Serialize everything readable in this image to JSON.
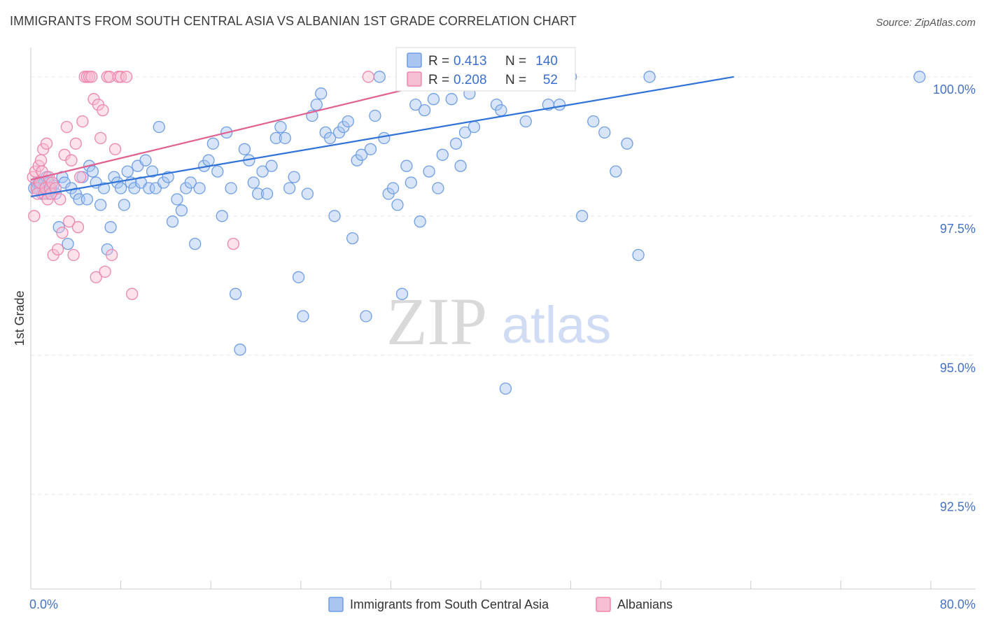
{
  "title": "IMMIGRANTS FROM SOUTH CENTRAL ASIA VS ALBANIAN 1ST GRADE CORRELATION CHART",
  "source": "Source: ZipAtlas.com",
  "colors": {
    "blue": "#6f9ee6",
    "blue_fill": "#a9c5f0",
    "blue_line": "#2f72d8",
    "pink": "#ee86ad",
    "pink_fill": "#f7bfd3",
    "pink_line": "#e0608f",
    "axis_text": "#4472c4"
  },
  "watermark": {
    "zip": "ZIP",
    "atlas": "atlas"
  },
  "chart_data": {
    "type": "scatter",
    "xlabel": "",
    "ylabel": "1st Grade",
    "xlim": [
      0,
      80
    ],
    "ylim": [
      90.8,
      100.4
    ],
    "x_tick_labels": [
      "0.0%",
      "80.0%"
    ],
    "y_ticks": [
      92.5,
      95.0,
      97.5,
      100.0
    ],
    "y_tick_labels": [
      "92.5%",
      "95.0%",
      "97.5%",
      "100.0%"
    ],
    "legend_position": "bottom-center",
    "stats": [
      {
        "r_label": "R =",
        "r_value": "0.413",
        "n_label": "N =",
        "n_value": "140"
      },
      {
        "r_label": "R =",
        "r_value": "0.208",
        "n_label": "N =",
        "n_value": "52"
      }
    ],
    "series": [
      {
        "name": "Immigrants from South Central Asia",
        "color": "#6f9ee6",
        "trend": {
          "x": [
            0,
            62.5
          ],
          "y": [
            97.85,
            100.0
          ]
        },
        "points": [
          [
            0.3,
            98.0
          ],
          [
            0.5,
            98.1
          ],
          [
            0.6,
            98.0
          ],
          [
            0.7,
            98.1
          ],
          [
            0.8,
            98.0
          ],
          [
            0.9,
            98.1
          ],
          [
            1.0,
            97.9
          ],
          [
            1.1,
            98.0
          ],
          [
            1.2,
            98.1
          ],
          [
            1.3,
            98.0
          ],
          [
            1.4,
            98.2
          ],
          [
            1.5,
            97.9
          ],
          [
            1.6,
            98.1
          ],
          [
            1.7,
            97.95
          ],
          [
            1.8,
            98.0
          ],
          [
            2.0,
            98.05
          ],
          [
            2.2,
            97.9
          ],
          [
            2.5,
            97.3
          ],
          [
            2.8,
            98.2
          ],
          [
            3.0,
            98.1
          ],
          [
            3.3,
            97.0
          ],
          [
            3.6,
            98.0
          ],
          [
            4.0,
            97.9
          ],
          [
            4.3,
            97.8
          ],
          [
            4.6,
            98.2
          ],
          [
            5.0,
            97.8
          ],
          [
            5.2,
            98.4
          ],
          [
            5.5,
            98.3
          ],
          [
            5.8,
            98.1
          ],
          [
            6.2,
            97.7
          ],
          [
            6.5,
            98.0
          ],
          [
            6.8,
            96.9
          ],
          [
            7.1,
            97.3
          ],
          [
            7.4,
            98.2
          ],
          [
            7.7,
            98.1
          ],
          [
            8.0,
            98.0
          ],
          [
            8.3,
            97.7
          ],
          [
            8.6,
            98.3
          ],
          [
            8.9,
            98.1
          ],
          [
            9.2,
            98.0
          ],
          [
            9.5,
            98.4
          ],
          [
            9.8,
            98.1
          ],
          [
            10.2,
            98.5
          ],
          [
            10.5,
            98.0
          ],
          [
            10.8,
            98.3
          ],
          [
            11.1,
            98.0
          ],
          [
            11.4,
            99.1
          ],
          [
            11.8,
            98.1
          ],
          [
            12.2,
            98.2
          ],
          [
            12.6,
            97.4
          ],
          [
            13.0,
            97.8
          ],
          [
            13.4,
            97.6
          ],
          [
            13.8,
            98.0
          ],
          [
            14.2,
            98.1
          ],
          [
            14.6,
            97.0
          ],
          [
            15.0,
            98.0
          ],
          [
            15.4,
            98.4
          ],
          [
            15.8,
            98.5
          ],
          [
            16.2,
            98.8
          ],
          [
            16.6,
            98.3
          ],
          [
            17.0,
            97.5
          ],
          [
            17.4,
            99.0
          ],
          [
            17.8,
            98.0
          ],
          [
            18.2,
            96.1
          ],
          [
            18.6,
            95.1
          ],
          [
            19.0,
            98.7
          ],
          [
            19.4,
            98.5
          ],
          [
            19.8,
            98.1
          ],
          [
            20.2,
            97.9
          ],
          [
            20.6,
            98.3
          ],
          [
            21.0,
            97.9
          ],
          [
            21.4,
            98.4
          ],
          [
            21.8,
            98.9
          ],
          [
            22.2,
            99.1
          ],
          [
            22.6,
            98.9
          ],
          [
            23.0,
            98.0
          ],
          [
            23.4,
            98.2
          ],
          [
            23.8,
            96.4
          ],
          [
            24.2,
            95.7
          ],
          [
            24.6,
            97.9
          ],
          [
            25.0,
            99.3
          ],
          [
            25.4,
            99.5
          ],
          [
            25.8,
            99.7
          ],
          [
            26.2,
            99.0
          ],
          [
            26.6,
            98.9
          ],
          [
            27.0,
            97.5
          ],
          [
            27.4,
            99.0
          ],
          [
            27.8,
            99.1
          ],
          [
            28.2,
            99.2
          ],
          [
            28.6,
            97.1
          ],
          [
            29.0,
            98.5
          ],
          [
            29.4,
            98.6
          ],
          [
            29.8,
            95.7
          ],
          [
            30.2,
            98.7
          ],
          [
            30.6,
            99.3
          ],
          [
            31.0,
            100.0
          ],
          [
            31.4,
            98.9
          ],
          [
            31.8,
            97.9
          ],
          [
            32.2,
            98.0
          ],
          [
            32.6,
            97.7
          ],
          [
            33.0,
            96.1
          ],
          [
            33.4,
            98.4
          ],
          [
            33.8,
            98.1
          ],
          [
            34.2,
            99.5
          ],
          [
            34.6,
            97.4
          ],
          [
            35.0,
            99.4
          ],
          [
            35.4,
            98.3
          ],
          [
            35.8,
            99.6
          ],
          [
            36.2,
            98.0
          ],
          [
            36.6,
            98.6
          ],
          [
            37.0,
            100.0
          ],
          [
            37.4,
            99.6
          ],
          [
            37.8,
            98.8
          ],
          [
            38.2,
            98.4
          ],
          [
            38.6,
            99.0
          ],
          [
            39.0,
            99.7
          ],
          [
            39.4,
            99.1
          ],
          [
            39.8,
            100.0
          ],
          [
            40.2,
            100.0
          ],
          [
            40.6,
            100.0
          ],
          [
            41.0,
            100.0
          ],
          [
            41.4,
            99.5
          ],
          [
            41.8,
            99.4
          ],
          [
            42.2,
            94.4
          ],
          [
            42.6,
            100.0
          ],
          [
            43.0,
            100.0
          ],
          [
            44.0,
            99.2
          ],
          [
            44.5,
            100.0
          ],
          [
            45.0,
            100.0
          ],
          [
            46.0,
            99.5
          ],
          [
            47.0,
            99.5
          ],
          [
            48.0,
            100.0
          ],
          [
            49.0,
            97.5
          ],
          [
            50.0,
            99.2
          ],
          [
            51.0,
            99.0
          ],
          [
            52.0,
            98.3
          ],
          [
            53.0,
            98.8
          ],
          [
            54.0,
            96.8
          ],
          [
            55.0,
            100.0
          ],
          [
            79.0,
            100.0
          ]
        ]
      },
      {
        "name": "Albanians",
        "color": "#ee86ad",
        "trend": {
          "x": [
            0,
            38
          ],
          "y": [
            98.15,
            100.0
          ]
        },
        "points": [
          [
            0.2,
            98.2
          ],
          [
            0.3,
            97.5
          ],
          [
            0.4,
            98.3
          ],
          [
            0.5,
            98.0
          ],
          [
            0.6,
            97.9
          ],
          [
            0.7,
            98.4
          ],
          [
            0.8,
            98.1
          ],
          [
            0.9,
            98.5
          ],
          [
            1.0,
            98.3
          ],
          [
            1.1,
            98.7
          ],
          [
            1.2,
            97.9
          ],
          [
            1.3,
            98.0
          ],
          [
            1.4,
            98.8
          ],
          [
            1.5,
            97.8
          ],
          [
            1.6,
            98.2
          ],
          [
            1.7,
            98.0
          ],
          [
            1.8,
            97.9
          ],
          [
            1.9,
            98.1
          ],
          [
            2.0,
            96.8
          ],
          [
            2.2,
            98.0
          ],
          [
            2.4,
            96.9
          ],
          [
            2.6,
            97.8
          ],
          [
            2.8,
            97.2
          ],
          [
            3.0,
            98.6
          ],
          [
            3.2,
            99.1
          ],
          [
            3.4,
            97.4
          ],
          [
            3.6,
            98.5
          ],
          [
            3.8,
            96.8
          ],
          [
            4.0,
            98.8
          ],
          [
            4.2,
            97.3
          ],
          [
            4.4,
            98.2
          ],
          [
            4.6,
            99.2
          ],
          [
            4.8,
            100.0
          ],
          [
            5.0,
            100.0
          ],
          [
            5.2,
            100.0
          ],
          [
            5.4,
            100.0
          ],
          [
            5.6,
            99.6
          ],
          [
            5.8,
            96.4
          ],
          [
            6.0,
            99.5
          ],
          [
            6.2,
            98.9
          ],
          [
            6.4,
            99.4
          ],
          [
            6.6,
            96.5
          ],
          [
            6.8,
            100.0
          ],
          [
            7.0,
            100.0
          ],
          [
            7.2,
            96.8
          ],
          [
            7.5,
            98.7
          ],
          [
            7.8,
            100.0
          ],
          [
            8.0,
            100.0
          ],
          [
            8.5,
            100.0
          ],
          [
            9.0,
            96.1
          ],
          [
            18.0,
            97.0
          ],
          [
            30.0,
            100.0
          ]
        ]
      }
    ]
  }
}
